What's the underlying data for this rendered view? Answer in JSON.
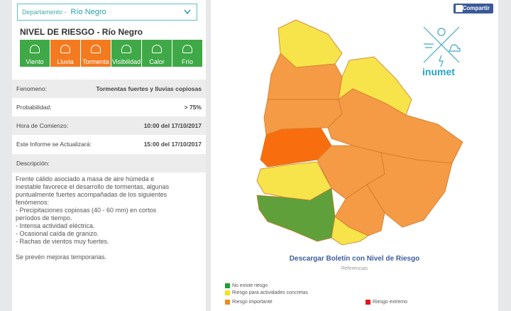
{
  "selector": {
    "label": "Departamento -",
    "value": "Río Negro"
  },
  "title": "NIVEL DE RIESGO - Río Negro",
  "indicators": [
    {
      "name": "Viento",
      "color": "#3fa847"
    },
    {
      "name": "Lluvia",
      "color": "#f47a20"
    },
    {
      "name": "Tormenta",
      "color": "#f47a20"
    },
    {
      "name": "Visibilidad",
      "color": "#3fa847"
    },
    {
      "name": "Calor",
      "color": "#3fa847"
    },
    {
      "name": "Frío",
      "color": "#3fa847"
    }
  ],
  "details": [
    {
      "label": "Fenomeno:",
      "value": "Tormentas fuertes y lluvias copiosas"
    },
    {
      "label": "Probabilidad:",
      "value": "> 75%"
    },
    {
      "label": "Hora de Comienzo:",
      "value": "10:00 del 17/10/2017"
    },
    {
      "label": "Este Informe se Actualizará:",
      "value": "15:00 del 17/10/2017"
    }
  ],
  "description_label": "Descripción:",
  "description": [
    "Frente cálido asociado a masa de aire húmeda e",
    "inestable favorece el desarrollo de tormentas, algunas",
    "puntualmente fuertes acompañadas de los siguientes",
    "fenómenos:",
    "- Precipitaciones copiosas (40 - 60 mm) en cortos",
    "períodos de tiempo.",
    "- Intensa actividad eléctrica.",
    "- Ocasional caída de granizo.",
    "- Rachas de vientos muy fuertes."
  ],
  "closing": "Se prevén mejoras temporarias.",
  "share": "Compartir",
  "logo": "inumet",
  "download": "Descargar Boletín con Nivel de Riesgo",
  "references": "Referencias",
  "legend": [
    {
      "label": "No existe riesgo",
      "color": "#1e9e2f"
    },
    {
      "label": "Riesgo para actividades concretas",
      "color": "#f2e21b"
    },
    {
      "label": "Riesgo importante",
      "color": "#f08a1c"
    },
    {
      "label": "Riesgo extremo",
      "color": "#e0161b"
    }
  ]
}
